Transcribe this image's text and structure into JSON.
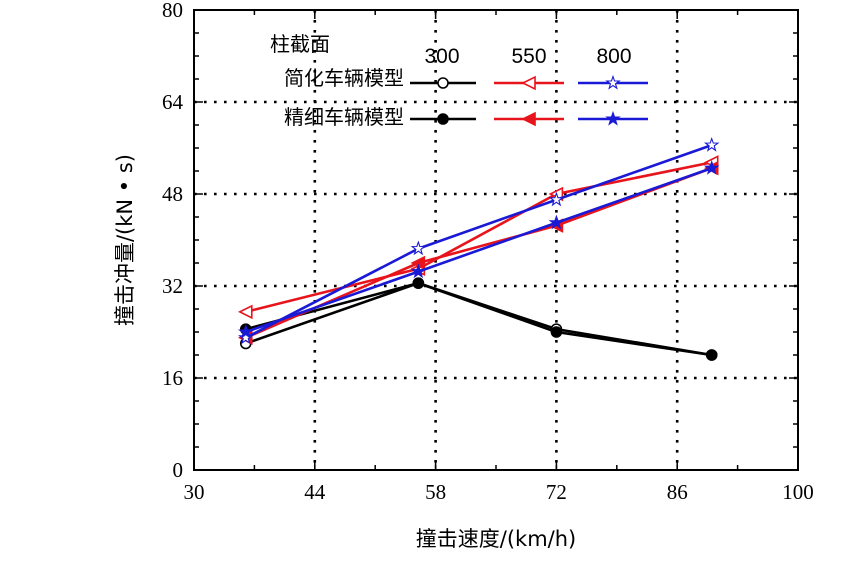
{
  "chart_data": {
    "type": "line",
    "xlabel": "撞击速度/(km/h)",
    "ylabel": "撞击冲量/(kN • s)",
    "xlim": [
      30,
      100
    ],
    "ylim": [
      0,
      80
    ],
    "xticks": [
      30,
      44,
      58,
      72,
      86,
      100
    ],
    "yticks": [
      0,
      16,
      32,
      48,
      64,
      80
    ],
    "x_grid": [
      44,
      58,
      72,
      86
    ],
    "y_grid": [
      16,
      32,
      48,
      64
    ],
    "grid": "dotted",
    "legend": {
      "title": "柱截面",
      "columns": [
        "300",
        "550",
        "800"
      ],
      "rows": [
        "简化车辆模型",
        "精细车辆模型"
      ]
    },
    "colors": {
      "c300": "#000000",
      "c550": "#e8141c",
      "c800": "#1a1ad6"
    },
    "series": [
      {
        "name": "简化车辆模型 300",
        "color_key": "c300",
        "marker": "circle",
        "filled": false,
        "x": [
          36,
          56,
          72,
          90
        ],
        "y": [
          22,
          32.5,
          24.5,
          20
        ]
      },
      {
        "name": "精细车辆模型 300",
        "color_key": "c300",
        "marker": "circle",
        "filled": true,
        "x": [
          36,
          56,
          72,
          90
        ],
        "y": [
          24.5,
          32.5,
          24,
          20
        ]
      },
      {
        "name": "简化车辆模型 550",
        "color_key": "c550",
        "marker": "triangle-left",
        "filled": false,
        "x": [
          36,
          56,
          72,
          90
        ],
        "y": [
          27.5,
          35,
          48,
          53.5
        ]
      },
      {
        "name": "精细车辆模型 550",
        "color_key": "c550",
        "marker": "triangle-left",
        "filled": true,
        "x": [
          36,
          56,
          72,
          90
        ],
        "y": [
          23,
          36,
          42.5,
          52.5
        ]
      },
      {
        "name": "简化车辆模型 800",
        "color_key": "c800",
        "marker": "star",
        "filled": false,
        "x": [
          36,
          56,
          72,
          90
        ],
        "y": [
          23,
          38.5,
          47,
          56.5
        ]
      },
      {
        "name": "精细车辆模型 800",
        "color_key": "c800",
        "marker": "star",
        "filled": true,
        "x": [
          36,
          56,
          72,
          90
        ],
        "y": [
          24,
          34.5,
          43,
          52.5
        ]
      }
    ]
  }
}
